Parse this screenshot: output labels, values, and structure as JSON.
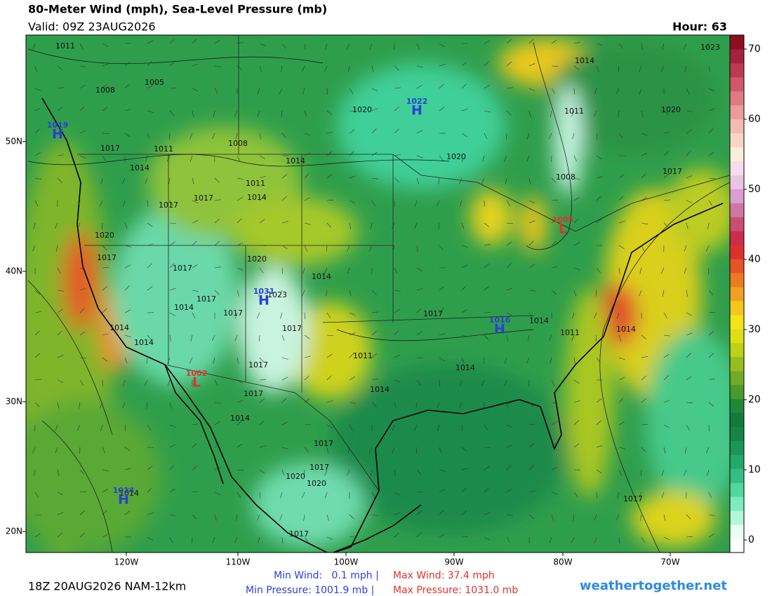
{
  "header": {
    "title": "80-Meter Wind (mph), Sea-Level Pressure (mb)",
    "valid": "Valid: 09Z 23AUG2026",
    "hour": "Hour: 63"
  },
  "map": {
    "lat_labels": [
      "50N",
      "40N",
      "30N",
      "20N"
    ],
    "lon_labels": [
      "120W",
      "110W",
      "100W",
      "90W",
      "80W",
      "70W"
    ],
    "highs": [
      {
        "value": "1022",
        "letter": "H"
      },
      {
        "value": "1019",
        "letter": "H"
      },
      {
        "value": "1031",
        "letter": "H"
      },
      {
        "value": "1016",
        "letter": "H"
      },
      {
        "value": "1014",
        "letter": "H"
      }
    ],
    "lows": [
      {
        "value": "1005",
        "letter": "L"
      },
      {
        "value": "1002",
        "letter": "L"
      }
    ],
    "isobar_labels": [
      "1011",
      "1008",
      "1005",
      "1017",
      "1011",
      "1014",
      "1008",
      "1014",
      "1020",
      "1020",
      "1014",
      "1011",
      "1020",
      "1023",
      "1017",
      "1008",
      "1011",
      "1014",
      "1017",
      "1017",
      "1020",
      "1017",
      "1017",
      "1020",
      "1014",
      "1017",
      "1014",
      "1023",
      "1017",
      "1014",
      "1014",
      "1017",
      "1011",
      "1017",
      "1014",
      "1011",
      "1014",
      "1017",
      "1014",
      "1014",
      "1017",
      "1014",
      "1017",
      "1017",
      "1020",
      "1020",
      "1017",
      "1017",
      "1014"
    ]
  },
  "colorbar": {
    "lim": [
      -1.8,
      72
    ],
    "ticks": [
      0,
      10,
      20,
      30,
      40,
      50,
      60,
      70
    ],
    "colors": [
      "#ffffff",
      "#e8fff4",
      "#b4f6dc",
      "#7fe9c0",
      "#52d6a0",
      "#36bd83",
      "#26a86a",
      "#1c9556",
      "#168447",
      "#137a3e",
      "#23873a",
      "#4c9a2e",
      "#6fab26",
      "#95bd1f",
      "#bdd01a",
      "#dede17",
      "#f2e31b",
      "#f4c61e",
      "#f1a021",
      "#ec7a23",
      "#e65427",
      "#dd2f2f",
      "#cc2d4b",
      "#c84e74",
      "#cf76a6",
      "#dc9ed0",
      "#ebc4e4",
      "#f6dcec",
      "#fcecd8",
      "#f8d6c3",
      "#f3bcb0",
      "#ea9c9a",
      "#df7a82",
      "#d0586a",
      "#bc3a52",
      "#a3243c",
      "#8a0f1f"
    ]
  },
  "footer": {
    "run": "18Z 20AUG2026 NAM-12km",
    "min_wind": "Min Wind:   0.1 mph |",
    "max_wind": "Max Wind: 37.4 mph",
    "min_pressure": "Min Pressure: 1001.9 mb |",
    "max_pressure": "Max Pressure: 1031.0 mb",
    "site": "weathertogether.net"
  }
}
